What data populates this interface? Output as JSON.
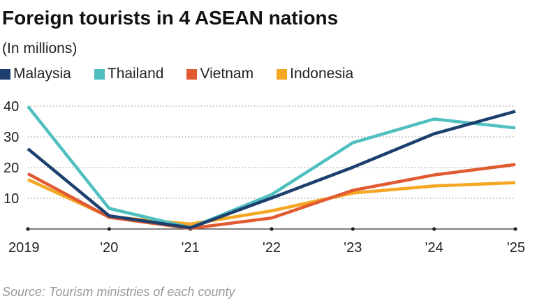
{
  "chart_data": {
    "type": "line",
    "title": "Foreign tourists in 4 ASEAN nations",
    "subtitle": "(In millions)",
    "source": "Source: Tourism ministries of each county",
    "x": [
      "2019",
      "'20",
      "'21",
      "'22",
      "'23",
      "'24",
      "'25"
    ],
    "ylim": [
      0,
      42
    ],
    "yticks": [
      10,
      20,
      30,
      40
    ],
    "grid": true,
    "legend_position": "top",
    "series": [
      {
        "name": "Malaysia",
        "color": "#1d3f6e",
        "values": [
          26.1,
          4.3,
          0.4,
          10.1,
          20.1,
          31.0,
          38.3
        ]
      },
      {
        "name": "Thailand",
        "color": "#4fbfbf",
        "values": [
          39.9,
          6.7,
          0.4,
          11.2,
          28.1,
          35.8,
          32.9
        ]
      },
      {
        "name": "Vietnam",
        "color": "#e05a32",
        "values": [
          18.0,
          3.8,
          0.2,
          3.6,
          12.6,
          17.6,
          21.0
        ]
      },
      {
        "name": "Indonesia",
        "color": "#f5a623",
        "values": [
          16.1,
          4.0,
          1.6,
          5.9,
          11.7,
          14.0,
          15.1
        ]
      }
    ]
  }
}
